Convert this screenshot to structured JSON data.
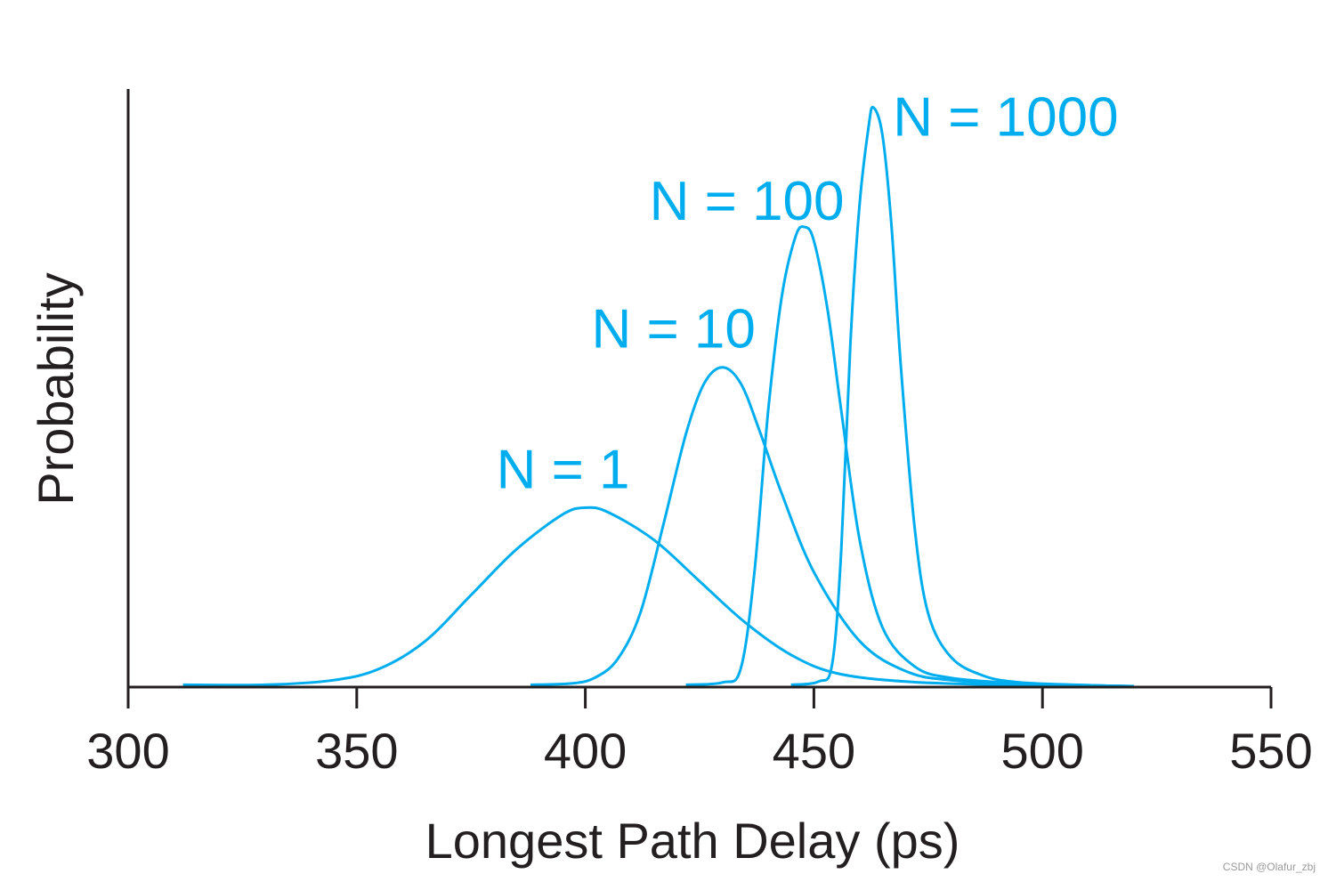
{
  "chart_data": {
    "type": "line",
    "title": "",
    "xlabel": "Longest Path Delay (ps)",
    "ylabel": "Probability",
    "xlim": [
      300,
      550
    ],
    "ylim": [
      0,
      1.3
    ],
    "x_ticks": [
      "300",
      "350",
      "400",
      "450",
      "500",
      "550"
    ],
    "y_ticks": [],
    "grid": false,
    "legend": "none",
    "line_color": "#00aeef",
    "axis_color": "#231f20",
    "series": [
      {
        "name": "N = 1",
        "x": [
          312,
          330,
          345,
          355,
          365,
          375,
          385,
          395,
          400,
          405,
          415,
          425,
          435,
          445,
          455,
          470,
          490,
          520
        ],
        "y": [
          0.005,
          0.005,
          0.015,
          0.04,
          0.1,
          0.2,
          0.3,
          0.375,
          0.39,
          0.38,
          0.32,
          0.23,
          0.14,
          0.07,
          0.03,
          0.012,
          0.005,
          0.002
        ]
      },
      {
        "name": "N = 10",
        "x": [
          388,
          397,
          402,
          407,
          412,
          417,
          422,
          426,
          430,
          434,
          438,
          443,
          450,
          460,
          470,
          480,
          500,
          520
        ],
        "y": [
          0.005,
          0.008,
          0.02,
          0.06,
          0.16,
          0.35,
          0.55,
          0.66,
          0.695,
          0.66,
          0.56,
          0.42,
          0.25,
          0.1,
          0.035,
          0.015,
          0.005,
          0.002
        ]
      },
      {
        "name": "N = 100",
        "x": [
          422,
          430,
          434,
          437,
          440,
          443,
          446,
          448,
          450,
          453,
          456,
          460,
          465,
          472,
          480,
          495,
          510,
          518
        ],
        "y": [
          0.005,
          0.01,
          0.04,
          0.25,
          0.6,
          0.85,
          0.98,
          1.0,
          0.97,
          0.82,
          0.6,
          0.32,
          0.13,
          0.045,
          0.02,
          0.008,
          0.004,
          0.002
        ]
      },
      {
        "name": "N = 1000",
        "x": [
          445,
          451,
          454,
          456,
          458,
          460,
          462,
          463,
          465,
          467,
          469,
          472,
          475,
          480,
          487,
          495,
          510,
          520
        ],
        "y": [
          0.005,
          0.012,
          0.05,
          0.3,
          0.75,
          1.05,
          1.22,
          1.26,
          1.2,
          1.0,
          0.7,
          0.35,
          0.16,
          0.065,
          0.025,
          0.01,
          0.004,
          0.002
        ]
      }
    ],
    "labels": [
      {
        "text": "N = 1",
        "series": 0
      },
      {
        "text": "N = 10",
        "series": 1
      },
      {
        "text": "N = 100",
        "series": 2
      },
      {
        "text": "N = 1000",
        "series": 3
      }
    ]
  },
  "watermark": "CSDN @Olafur_zbj"
}
